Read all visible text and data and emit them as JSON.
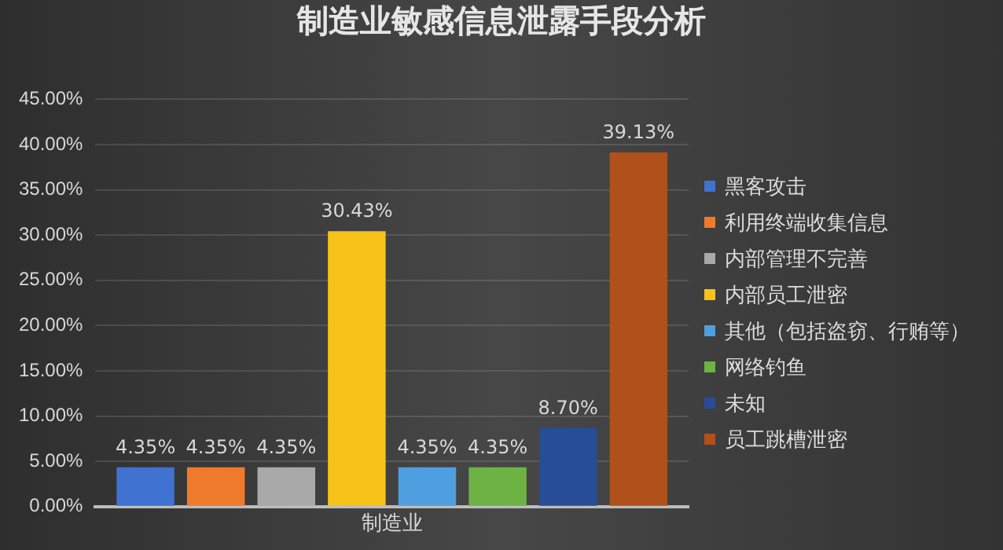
{
  "chart_data": {
    "type": "bar",
    "title": "制造业敏感信息泄露手段分析",
    "categories": [
      "制造业"
    ],
    "series": [
      {
        "name": "黑客攻击",
        "color": "#3f72d1",
        "values": [
          4.35
        ],
        "value_labels": [
          "4.35%"
        ]
      },
      {
        "name": "利用终端收集信息",
        "color": "#f07a2c",
        "values": [
          4.35
        ],
        "value_labels": [
          "4.35%"
        ]
      },
      {
        "name": "内部管理不完善",
        "color": "#a9a9a9",
        "values": [
          4.35
        ],
        "value_labels": [
          "4.35%"
        ]
      },
      {
        "name": "内部员工泄密",
        "color": "#f7c21a",
        "values": [
          30.43
        ],
        "value_labels": [
          "30.43%"
        ]
      },
      {
        "name": "其他（包括盗窃、行贿等）",
        "color": "#4f9fe0",
        "values": [
          4.35
        ],
        "value_labels": [
          "4.35%"
        ]
      },
      {
        "name": "网络钓鱼",
        "color": "#6cb344",
        "values": [
          4.35
        ],
        "value_labels": [
          "4.35%"
        ]
      },
      {
        "name": "未知",
        "color": "#274d96",
        "values": [
          8.7
        ],
        "value_labels": [
          "8.70%"
        ]
      },
      {
        "name": "员工跳槽泄密",
        "color": "#b0501a",
        "values": [
          39.13
        ],
        "value_labels": [
          "39.13%"
        ]
      }
    ],
    "ylim": [
      0,
      45
    ],
    "yticks": [
      {
        "value": 0,
        "label": "0.00%"
      },
      {
        "value": 5,
        "label": "5.00%"
      },
      {
        "value": 10,
        "label": "10.00%"
      },
      {
        "value": 15,
        "label": "15.00%"
      },
      {
        "value": 20,
        "label": "20.00%"
      },
      {
        "value": 25,
        "label": "25.00%"
      },
      {
        "value": 30,
        "label": "30.00%"
      },
      {
        "value": 35,
        "label": "35.00%"
      },
      {
        "value": 40,
        "label": "40.00%"
      },
      {
        "value": 45,
        "label": "45.00%"
      }
    ],
    "grid": "y",
    "legend": "right"
  }
}
